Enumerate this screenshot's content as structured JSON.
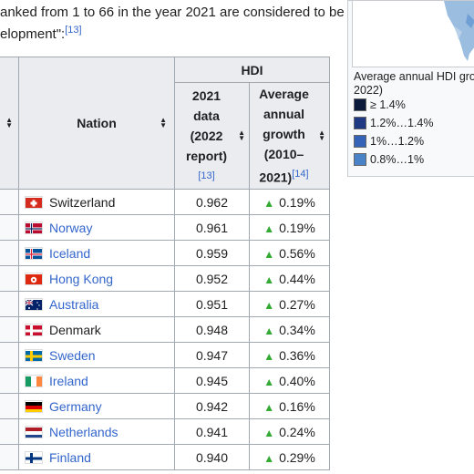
{
  "intro": {
    "line1": "anked from 1 to 66 in the year 2021 are considered to be",
    "line2": "elopment\":",
    "ref": "[13]"
  },
  "table": {
    "group_header": "HDI",
    "nation_header": "Nation",
    "col_2021": {
      "line1": "2021",
      "line2": "data",
      "line3": "(2022",
      "line4": "report)",
      "ref": "[13]"
    },
    "col_growth": {
      "line1": "Average",
      "line2": "annual",
      "line3": "growth",
      "line4": "(2010–",
      "line5": "2021)",
      "ref": "[14]"
    },
    "rows": [
      {
        "nation": "Switzerland",
        "flag": "switzerland-flag-icon",
        "hdi": "0.962",
        "growth": "0.19%",
        "visited": true
      },
      {
        "nation": "Norway",
        "flag": "norway-flag-icon",
        "hdi": "0.961",
        "growth": "0.19%",
        "visited": false
      },
      {
        "nation": "Iceland",
        "flag": "iceland-flag-icon",
        "hdi": "0.959",
        "growth": "0.56%",
        "visited": false
      },
      {
        "nation": "Hong Kong",
        "flag": "hong-kong-flag-icon",
        "hdi": "0.952",
        "growth": "0.44%",
        "visited": false
      },
      {
        "nation": "Australia",
        "flag": "australia-flag-icon",
        "hdi": "0.951",
        "growth": "0.27%",
        "visited": false
      },
      {
        "nation": "Denmark",
        "flag": "denmark-flag-icon",
        "hdi": "0.948",
        "growth": "0.34%",
        "visited": true
      },
      {
        "nation": "Sweden",
        "flag": "sweden-flag-icon",
        "hdi": "0.947",
        "growth": "0.36%",
        "visited": false
      },
      {
        "nation": "Ireland",
        "flag": "ireland-flag-icon",
        "hdi": "0.945",
        "growth": "0.40%",
        "visited": false
      },
      {
        "nation": "Germany",
        "flag": "germany-flag-icon",
        "hdi": "0.942",
        "growth": "0.16%",
        "visited": false
      },
      {
        "nation": "Netherlands",
        "flag": "netherlands-flag-icon",
        "hdi": "0.941",
        "growth": "0.24%",
        "visited": false
      },
      {
        "nation": "Finland",
        "flag": "finland-flag-icon",
        "hdi": "0.940",
        "growth": "0.29%",
        "visited": false
      }
    ]
  },
  "legend": {
    "title_line1": "Average annual HDI gro",
    "title_line2": "2022)",
    "items": [
      {
        "label": "≥ 1.4%",
        "color": "#0b1a3a"
      },
      {
        "label": "1.2%…1.4%",
        "color": "#1f3a82"
      },
      {
        "label": "1%…1.2%",
        "color": "#3563b8"
      },
      {
        "label": "0.8%…1%",
        "color": "#4a82c8"
      }
    ]
  },
  "colors": {
    "link": "#3366cc",
    "growth_arrow": "#33aa33",
    "header_bg": "#eaecf0",
    "border": "#a2a9b1"
  }
}
